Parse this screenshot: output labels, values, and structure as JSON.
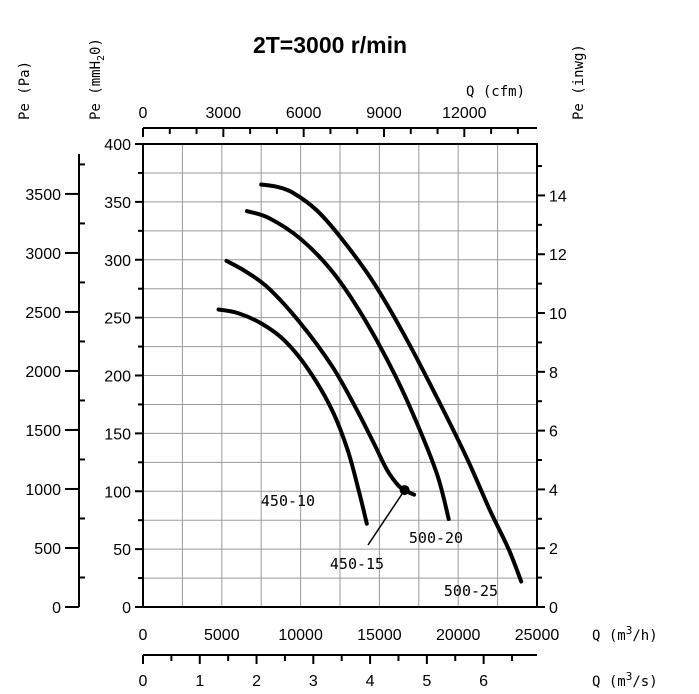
{
  "chart_data": {
    "type": "line",
    "title": "2T=3000 r/min",
    "x_primary": {
      "label": "Q (m3/h)",
      "range": [
        0,
        25000
      ],
      "ticks": [
        0,
        5000,
        10000,
        15000,
        20000,
        25000
      ],
      "minor_step": 2500
    },
    "x_secondary_ms": {
      "label": "Q (m3/s)",
      "range": [
        0,
        6.94
      ],
      "ticks": [
        0,
        1,
        2,
        3,
        4,
        5,
        6
      ],
      "minor_step": 0.5
    },
    "x_top_cfm": {
      "label": "Q (cfm)",
      "range": [
        0,
        14714
      ],
      "ticks": [
        0,
        3000,
        6000,
        9000,
        12000
      ],
      "minor_step": 1000
    },
    "y_mmH2O": {
      "label": "Pe (mmH2O)",
      "range": [
        0,
        400
      ],
      "ticks": [
        0,
        50,
        100,
        150,
        200,
        250,
        300,
        350,
        400
      ],
      "minor_step": 25
    },
    "y_pa": {
      "label": "Pe (Pa)",
      "range": [
        0,
        3923
      ],
      "ticks": [
        0,
        500,
        1000,
        1500,
        2000,
        2500,
        3000,
        3500
      ],
      "minor_step": 250
    },
    "y_inwg": {
      "label": "Pe (inwg)",
      "range": [
        0,
        15.75
      ],
      "ticks": [
        0,
        2,
        4,
        6,
        8,
        10,
        12,
        14
      ],
      "minor_step": 1
    },
    "grid": true,
    "series": [
      {
        "name": "450-10",
        "points": [
          [
            4800,
            257
          ],
          [
            6000,
            254
          ],
          [
            7500,
            245
          ],
          [
            9000,
            230
          ],
          [
            10500,
            205
          ],
          [
            12000,
            170
          ],
          [
            13000,
            135
          ],
          [
            13700,
            100
          ],
          [
            14200,
            72
          ]
        ]
      },
      {
        "name": "450-15",
        "points": [
          [
            5300,
            299
          ],
          [
            6500,
            290
          ],
          [
            8000,
            275
          ],
          [
            10000,
            245
          ],
          [
            12000,
            208
          ],
          [
            13500,
            172
          ],
          [
            14700,
            140
          ],
          [
            15500,
            118
          ],
          [
            16200,
            105
          ],
          [
            16600,
            101
          ],
          [
            17200,
            97
          ]
        ]
      },
      {
        "name": "500-20",
        "points": [
          [
            6600,
            342
          ],
          [
            8000,
            336
          ],
          [
            10000,
            318
          ],
          [
            12000,
            290
          ],
          [
            14000,
            250
          ],
          [
            16000,
            200
          ],
          [
            17500,
            155
          ],
          [
            18700,
            113
          ],
          [
            19400,
            76
          ]
        ]
      },
      {
        "name": "500-25",
        "points": [
          [
            7500,
            365
          ],
          [
            8500,
            363
          ],
          [
            9500,
            358
          ],
          [
            11000,
            343
          ],
          [
            12500,
            320
          ],
          [
            14500,
            283
          ],
          [
            16500,
            237
          ],
          [
            18500,
            185
          ],
          [
            20500,
            130
          ],
          [
            22000,
            84
          ],
          [
            23200,
            50
          ],
          [
            24000,
            22
          ]
        ]
      }
    ],
    "annotations": {
      "operating_point": {
        "x": 16600,
        "y": 101
      }
    }
  },
  "texts": {
    "title": "2T=3000 r/min",
    "y_pa_label": "Pe (Pa)",
    "y_mm_label_prefix": "Pe (mmH",
    "y_mm_label_sub": "2",
    "y_mm_label_suffix": "0)",
    "y_inwg_label": "Pe (inwg)",
    "x_cfm_label": "Q (cfm)",
    "x_m3h_label_a": "Q (m",
    "x_m3h_label_sup": "3",
    "x_m3h_label_b": "/h)",
    "x_m3s_label_a": "Q (m",
    "x_m3s_label_sup": "3",
    "x_m3s_label_b": "/s)"
  },
  "series_labels": [
    "450-10",
    "450-15",
    "500-20",
    "500-25"
  ]
}
